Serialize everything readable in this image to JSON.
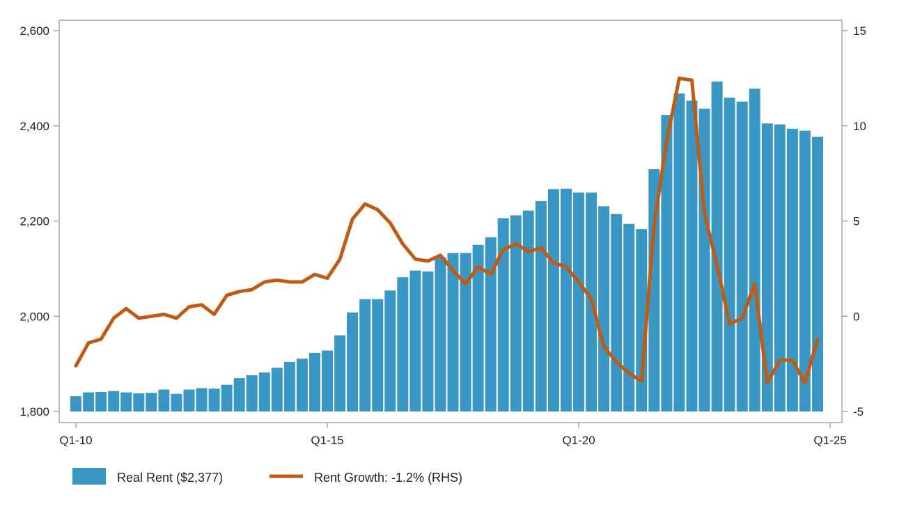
{
  "colors": {
    "bar": "#3a97c4",
    "line": "#c05b14",
    "axis": "#9a9a9a",
    "text": "#222222"
  },
  "chart_data": {
    "type": "bar",
    "x_start_quarter": "Q1-10",
    "x_ticks": [
      "Q1-10",
      "Q1-15",
      "Q1-20",
      "Q1-25"
    ],
    "y_left": {
      "ticks": [
        "1,800",
        "2,000",
        "2,200",
        "2,400",
        "2,600"
      ],
      "min": 1800,
      "max": 2600
    },
    "y_right": {
      "ticks": [
        "-5",
        "0",
        "5",
        "10",
        "15"
      ],
      "min": -5,
      "max": 15
    },
    "grid": false,
    "legend_position": "bottom",
    "series": [
      {
        "name": "Real Rent ($2,377)",
        "type": "bar",
        "axis": "left",
        "values": [
          1832,
          1840,
          1841,
          1843,
          1840,
          1838,
          1839,
          1846,
          1837,
          1846,
          1849,
          1848,
          1856,
          1870,
          1876,
          1882,
          1892,
          1904,
          1911,
          1923,
          1928,
          1960,
          2008,
          2036,
          2036,
          2054,
          2082,
          2096,
          2094,
          2124,
          2133,
          2133,
          2150,
          2166,
          2206,
          2212,
          2222,
          2242,
          2267,
          2268,
          2260,
          2260,
          2231,
          2215,
          2194,
          2183,
          2309,
          2423,
          2468,
          2453,
          2436,
          2493,
          2459,
          2451,
          2478,
          2405,
          2403,
          2394,
          2390,
          2377
        ]
      },
      {
        "name": "Rent Growth: -1.2% (RHS)",
        "type": "line",
        "axis": "right",
        "values": [
          -2.6,
          -1.4,
          -1.2,
          -0.1,
          0.4,
          -0.1,
          0.0,
          0.1,
          -0.1,
          0.5,
          0.6,
          0.1,
          1.1,
          1.3,
          1.4,
          1.8,
          1.9,
          1.8,
          1.8,
          2.2,
          2.0,
          3.0,
          5.1,
          5.9,
          5.6,
          4.9,
          3.8,
          3.0,
          2.9,
          3.2,
          2.4,
          1.7,
          2.6,
          2.2,
          3.5,
          3.8,
          3.4,
          3.6,
          2.8,
          2.6,
          1.8,
          0.9,
          -1.6,
          -2.4,
          -3.0,
          -3.4,
          4.8,
          9.2,
          12.5,
          12.4,
          5.4,
          2.7,
          -0.4,
          -0.1,
          1.7,
          -3.5,
          -2.3,
          -2.3,
          -3.5,
          -1.2
        ]
      }
    ]
  }
}
